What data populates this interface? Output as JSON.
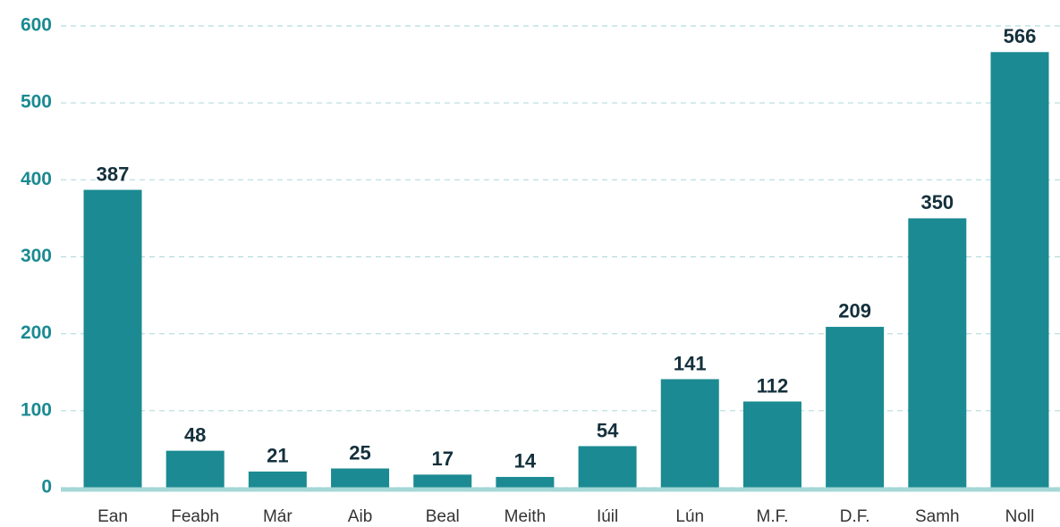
{
  "chart_data": {
    "type": "bar",
    "categories": [
      "Ean",
      "Feabh",
      "Már",
      "Aib",
      "Beal",
      "Meith",
      "Iúil",
      "Lún",
      "M.F.",
      "D.F.",
      "Samh",
      "Noll"
    ],
    "values": [
      387,
      48,
      21,
      25,
      17,
      14,
      54,
      141,
      112,
      209,
      350,
      566
    ],
    "color": "#1b8a92",
    "ylim": [
      0,
      600
    ],
    "yticks": [
      0,
      100,
      200,
      300,
      400,
      500,
      600
    ],
    "grid": true
  }
}
